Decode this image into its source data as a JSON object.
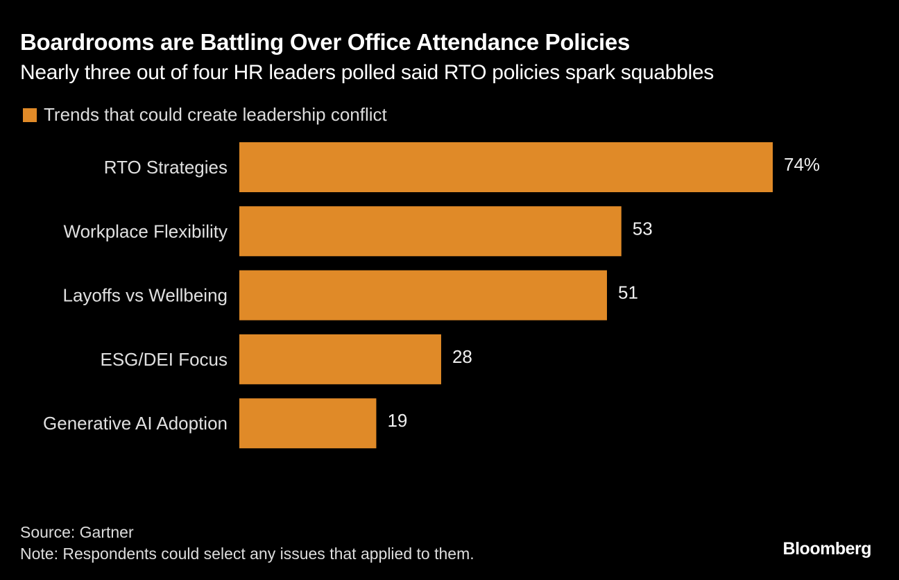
{
  "chart_data": {
    "type": "bar",
    "orientation": "horizontal",
    "title": "Boardrooms are Battling Over Office Attendance Policies",
    "subtitle": "Nearly three out of four HR leaders polled said RTO policies spark squabbles",
    "legend": {
      "placement": "top-left",
      "entries": [
        "Trends that could create leadership conflict"
      ]
    },
    "categories": [
      "RTO Strategies",
      "Workplace Flexibility",
      "Layoffs vs Wellbeing",
      "ESG/DEI Focus",
      "Generative AI Adoption"
    ],
    "series": [
      {
        "name": "Trends that could create leadership conflict",
        "values": [
          74,
          53,
          51,
          28,
          19
        ]
      }
    ],
    "data_labels": [
      "74%",
      "53",
      "51",
      "28",
      "19"
    ],
    "unit": "%",
    "xlim": [
      0,
      74
    ],
    "grid": false,
    "colors": {
      "bar": "#E08A28",
      "background": "#000000"
    }
  },
  "footer": {
    "source": "Source: Gartner",
    "note": "Note: Respondents could select any issues that applied to them."
  },
  "brand": "Bloomberg"
}
